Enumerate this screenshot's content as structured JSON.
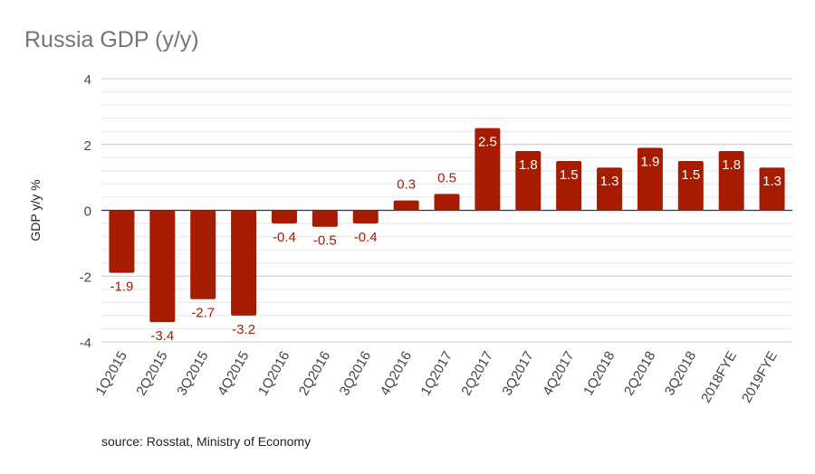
{
  "chart_data": {
    "type": "bar",
    "title": "Russia GDP (y/y)",
    "xlabel": "",
    "ylabel": "GDP y/y %",
    "ylim": [
      -4,
      4
    ],
    "yticks": [
      -4,
      -2,
      0,
      2,
      4
    ],
    "grid": true,
    "minor_grid_step": 0.4,
    "bar_color": "#a61c00",
    "categories": [
      "1Q2015",
      "2Q2015",
      "3Q2015",
      "4Q2015",
      "1Q2016",
      "2Q2016",
      "3Q2016",
      "4Q2016",
      "1Q2017",
      "2Q2017",
      "3Q2017",
      "4Q2017",
      "1Q2018",
      "2Q2018",
      "3Q2018",
      "2018FYE",
      "2019FYE"
    ],
    "values": [
      -1.9,
      -3.4,
      -2.7,
      -3.2,
      -0.4,
      -0.5,
      -0.4,
      0.3,
      0.5,
      2.5,
      1.8,
      1.5,
      1.3,
      1.9,
      1.5,
      1.8,
      1.3
    ],
    "source": "source: Rosstat, Ministry of Economy"
  }
}
